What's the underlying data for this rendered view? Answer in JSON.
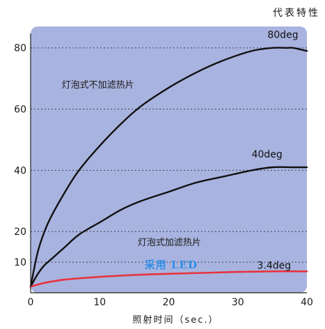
{
  "chart_data": {
    "type": "line",
    "title": "代表特性",
    "xlabel": "照射时间（sec.）",
    "ylabel": "",
    "xlim": [
      0,
      40
    ],
    "ylim": [
      0,
      87
    ],
    "x_ticks": [
      "0",
      "10",
      "20",
      "30",
      "40"
    ],
    "y_ticks": [
      "10",
      "20",
      "40",
      "60",
      "80"
    ],
    "grid": "horizontal dotted",
    "background_color": "#a9b3df",
    "series": [
      {
        "name": "80deg",
        "color": "#111111",
        "x": [
          0,
          1,
          2,
          3,
          5,
          7,
          10,
          13,
          16,
          20,
          24,
          28,
          32,
          35,
          37,
          38,
          40
        ],
        "y": [
          2,
          13,
          20,
          25,
          33,
          40,
          48,
          55,
          61,
          67,
          72,
          76,
          79,
          80,
          80,
          80,
          79
        ]
      },
      {
        "name": "40deg",
        "color": "#111111",
        "x": [
          0,
          1,
          2,
          3,
          5,
          7,
          10,
          13,
          16,
          20,
          24,
          28,
          32,
          35,
          38,
          40
        ],
        "y": [
          2,
          6,
          9,
          11,
          15,
          19,
          23,
          27,
          30,
          33,
          36,
          38,
          40,
          41,
          41,
          41
        ]
      },
      {
        "name": "3.4deg",
        "color": "#e8323c",
        "x": [
          0,
          2,
          5,
          10,
          15,
          20,
          25,
          30,
          35,
          40
        ],
        "y": [
          2,
          3.2,
          4.3,
          5.2,
          5.8,
          6.2,
          6.5,
          6.8,
          7,
          7
        ]
      }
    ],
    "annotations": [
      {
        "text": "灯泡式不加滤热片",
        "x": 4.5,
        "y": 67
      },
      {
        "text": "灯泡式加滤热片",
        "x": 15.5,
        "y": 15.5
      },
      {
        "text": "采用 LED",
        "x": 16.5,
        "y": 8
      }
    ]
  }
}
